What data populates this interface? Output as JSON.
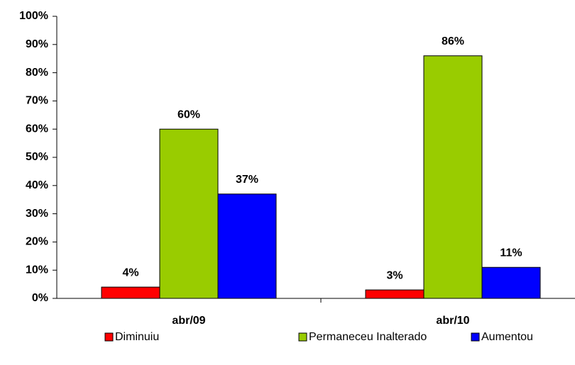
{
  "chart_data": {
    "type": "bar",
    "categories": [
      "abr/09",
      "abr/10"
    ],
    "series": [
      {
        "name": "Diminuiu",
        "color": "#ff0000",
        "values": [
          4,
          3
        ],
        "value_labels": [
          "4%",
          "3%"
        ]
      },
      {
        "name": "Permaneceu Inalterado",
        "color": "#99cc00",
        "values": [
          60,
          86
        ],
        "value_labels": [
          "60%",
          "86%"
        ]
      },
      {
        "name": "Aumentou",
        "color": "#0000ff",
        "values": [
          37,
          11
        ],
        "value_labels": [
          "37%",
          "11%"
        ]
      }
    ],
    "ylim": [
      0,
      100
    ],
    "yticks": [
      {
        "value": 0,
        "label": "0%"
      },
      {
        "value": 10,
        "label": "10%"
      },
      {
        "value": 20,
        "label": "20%"
      },
      {
        "value": 30,
        "label": "30%"
      },
      {
        "value": 40,
        "label": "40%"
      },
      {
        "value": 50,
        "label": "50%"
      },
      {
        "value": 60,
        "label": "60%"
      },
      {
        "value": 70,
        "label": "70%"
      },
      {
        "value": 80,
        "label": "80%"
      },
      {
        "value": 90,
        "label": "90%"
      },
      {
        "value": 100,
        "label": "100%"
      }
    ],
    "grid": false,
    "legend": "bottom"
  }
}
